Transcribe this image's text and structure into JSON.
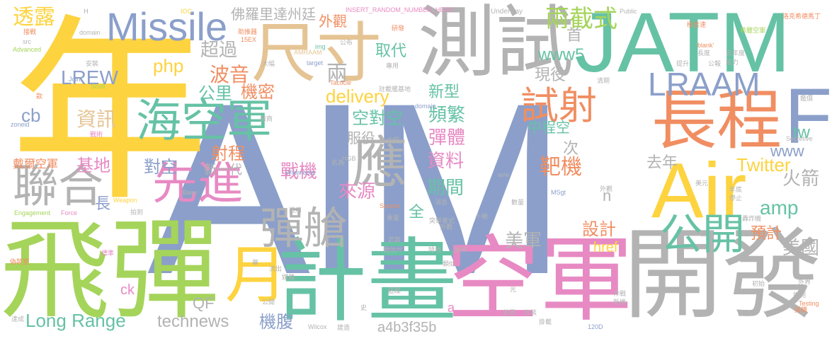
{
  "palette": {
    "yellow": "#fdd33f",
    "green": "#a5d45a",
    "blue": "#8b9fca",
    "pink": "#e78ac3",
    "orange": "#f08e62",
    "teal": "#66c2a5",
    "gray": "#b3b3b3",
    "tan": "#e5c494"
  },
  "words": [
    {
      "text": "AIM",
      "color": "#8b9fca"
    },
    {
      "text": "年",
      "color": "#fdd33f"
    },
    {
      "text": "飛彈",
      "color": "#a5d45a"
    },
    {
      "text": "測試",
      "color": "#b3b3b3"
    },
    {
      "text": "JATM",
      "color": "#66c2a5"
    },
    {
      "text": "尺寸",
      "color": "#e5c494"
    },
    {
      "text": "Missile",
      "color": "#8b9fca"
    },
    {
      "text": "Air",
      "color": "#fdd33f"
    },
    {
      "text": "F",
      "color": "#8b9fca"
    },
    {
      "text": "長程",
      "color": "#f08e62"
    },
    {
      "text": "空軍",
      "color": "#e78ac3"
    },
    {
      "text": "開發",
      "color": "#b3b3b3"
    },
    {
      "text": "計畫",
      "color": "#66c2a5"
    },
    {
      "text": "月",
      "color": "#fdd33f"
    },
    {
      "text": "海空軍",
      "color": "#66c2a5"
    },
    {
      "text": "先進",
      "color": "#e78ac3"
    },
    {
      "text": "聯合",
      "color": "#b3b3b3"
    },
    {
      "text": "應",
      "color": "#b3b3b3"
    },
    {
      "text": "彈艙",
      "color": "#b3b3b3"
    },
    {
      "text": "試射",
      "color": "#f08e62"
    },
    {
      "text": "LRAAM",
      "color": "#8b9fca"
    },
    {
      "text": "公開",
      "color": "#66c2a5"
    },
    {
      "text": "兩截式",
      "color": "#a5d45a"
    },
    {
      "text": "透露",
      "color": "#fdd33f"
    },
    {
      "text": "佛羅里達州廷",
      "color": "#b3b3b3"
    },
    {
      "text": "外觀",
      "color": "#f08e62"
    },
    {
      "text": "超過",
      "color": "#b3b3b3"
    },
    {
      "text": "php",
      "color": "#fdd33f"
    },
    {
      "text": "波音",
      "color": "#f08e62"
    },
    {
      "text": "LREW",
      "color": "#8b9fca"
    },
    {
      "text": "公里",
      "color": "#66c2a5"
    },
    {
      "text": "機密",
      "color": "#f08e62"
    },
    {
      "text": "兩",
      "color": "#b3b3b3"
    },
    {
      "text": "delivery",
      "color": "#fdd33f"
    },
    {
      "text": "取代",
      "color": "#66c2a5"
    },
    {
      "text": "www5",
      "color": "#66c2a5"
    },
    {
      "text": "首",
      "color": "#b3b3b3"
    },
    {
      "text": "現役",
      "color": "#b3b3b3"
    },
    {
      "text": "cb",
      "color": "#8b9fca"
    },
    {
      "text": "資訊",
      "color": "#e5c494"
    },
    {
      "text": "空對空",
      "color": "#66c2a5"
    },
    {
      "text": "新型",
      "color": "#66c2a5"
    },
    {
      "text": "頻繁",
      "color": "#66c2a5"
    },
    {
      "text": "服役",
      "color": "#b3b3b3"
    },
    {
      "text": "中程空",
      "color": "#66c2a5"
    },
    {
      "text": "tw",
      "color": "#66c2a5"
    },
    {
      "text": "www",
      "color": "#8b9fca"
    },
    {
      "text": "戴爾空軍",
      "color": "#f08e62"
    },
    {
      "text": "射程",
      "color": "#f08e62"
    },
    {
      "text": "彈體",
      "color": "#e78ac3"
    },
    {
      "text": "次",
      "color": "#b3b3b3"
    },
    {
      "text": "基地",
      "color": "#e78ac3"
    },
    {
      "text": "對空",
      "color": "#8b9fca"
    },
    {
      "text": "資料",
      "color": "#e78ac3"
    },
    {
      "text": "靶機",
      "color": "#f08e62"
    },
    {
      "text": "去年",
      "color": "#b3b3b3"
    },
    {
      "text": "Twitter",
      "color": "#fdd33f"
    },
    {
      "text": "新一代",
      "color": "#b3b3b3"
    },
    {
      "text": "戰機",
      "color": "#e78ac3"
    },
    {
      "text": "期間",
      "color": "#66c2a5"
    },
    {
      "text": "火箭",
      "color": "#b3b3b3"
    },
    {
      "text": "長",
      "color": "#8b9fca"
    },
    {
      "text": "來源",
      "color": "#e78ac3"
    },
    {
      "text": "n",
      "color": "#b3b3b3"
    },
    {
      "text": "amp",
      "color": "#66c2a5"
    },
    {
      "text": "全",
      "color": "#66c2a5"
    },
    {
      "text": "設計",
      "color": "#f08e62"
    },
    {
      "text": "預計",
      "color": "#f08e62"
    },
    {
      "text": "美軍",
      "color": "#b3b3b3"
    },
    {
      "text": "href",
      "color": "#fdd33f"
    },
    {
      "text": "美國",
      "color": "#b3b3b3"
    },
    {
      "text": "Long Range",
      "color": "#66c2a5"
    },
    {
      "text": "technews",
      "color": "#b3b3b3"
    },
    {
      "text": "QF",
      "color": "#b3b3b3"
    },
    {
      "text": "ck",
      "color": "#e78ac3"
    },
    {
      "text": "機腹",
      "color": "#8b9fca"
    },
    {
      "text": "a4b3f35b",
      "color": "#b3b3b3"
    },
    {
      "text": "a",
      "color": "#e78ac3"
    },
    {
      "text": "INSERT_RANDOM_NUMBER_HERE'",
      "color": "#e78ac3"
    },
    {
      "text": "Underway",
      "color": "#b3b3b3"
    },
    {
      "text": "Public",
      "color": "#b3b3b3"
    },
    {
      "text": "Wikimedia",
      "color": "#8b9fca"
    },
    {
      "text": "AMRAAM",
      "color": "#e5c494"
    },
    {
      "text": "Tacticle",
      "color": "#f08e62"
    },
    {
      "text": "Commons",
      "color": "#8b9fca"
    },
    {
      "text": "domain",
      "color": "#b3b3b3"
    },
    {
      "text": "Advanced",
      "color": "#a5d45a"
    },
    {
      "text": "Joint",
      "color": "#8b9fca"
    },
    {
      "text": "Scott",
      "color": "#a5d45a"
    },
    {
      "text": "zoneid",
      "color": "#8b9fca"
    },
    {
      "text": "Engagement",
      "color": "#a5d45a"
    },
    {
      "text": "Force",
      "color": "#e78ac3"
    },
    {
      "text": "Weapon",
      "color": "#fdd33f"
    },
    {
      "text": "Base",
      "color": "#b3b3b3"
    },
    {
      "text": "HGB",
      "color": "#b3b3b3"
    },
    {
      "text": "Source",
      "color": "#f08e62"
    },
    {
      "text": "avw",
      "color": "#b3b3b3"
    },
    {
      "text": "MSgt",
      "color": "#8b9fca"
    },
    {
      "text": "Secretive",
      "color": "#b3b3b3"
    },
    {
      "text": "Testing",
      "color": "#f08e62"
    },
    {
      "text": "Wilcox",
      "color": "#b3b3b3"
    },
    {
      "text": "120D",
      "color": "#8b9fca"
    },
    {
      "text": "15EX",
      "color": "#f08e62"
    },
    {
      "text": "img",
      "color": "#66c2a5"
    },
    {
      "text": "target",
      "color": "#8b9fca"
    },
    {
      "text": "src",
      "color": "#b3b3b3"
    },
    {
      "text": "blank'",
      "color": "#f08e62"
    },
    {
      "text": "IOC",
      "color": "#fdd33f"
    },
    {
      "text": "C",
      "color": "#f08e62"
    },
    {
      "text": "B",
      "color": "#b3b3b3"
    },
    {
      "text": "J",
      "color": "#e78ac3"
    },
    {
      "text": "I",
      "color": "#e78ac3"
    },
    {
      "text": "H",
      "color": "#b3b3b3"
    },
    {
      "text": "接戰",
      "color": "#b3b3b3"
    },
    {
      "text": "助推器",
      "color": "#f08e62"
    },
    {
      "text": "公布",
      "color": "#f08e62"
    },
    {
      "text": "研發",
      "color": "#b3b3b3"
    },
    {
      "text": "極音速",
      "color": "#f08e62"
    },
    {
      "text": "洛克希德馬丁",
      "color": "#f08e62"
    },
    {
      "text": "希臘空軍",
      "color": "#f08e62"
    },
    {
      "text": "去年度",
      "color": "#a5d45a"
    },
    {
      "text": "能力",
      "color": "#b3b3b3"
    },
    {
      "text": "長度",
      "color": "#b3b3b3"
    },
    {
      "text": "提升",
      "color": "#b3b3b3"
    },
    {
      "text": "公報",
      "color": "#b3b3b3"
    },
    {
      "text": "大幅",
      "color": "#b3b3b3"
    },
    {
      "text": "專用",
      "color": "#b3b3b3"
    },
    {
      "text": "安裝",
      "color": "#b3b3b3"
    },
    {
      "text": "款",
      "color": "#b3b3b3"
    },
    {
      "text": "戰術",
      "color": "#f08e62"
    },
    {
      "text": "畫面",
      "color": "#e78ac3"
    },
    {
      "text": "廠商",
      "color": "#b3b3b3"
    },
    {
      "text": "中程",
      "color": "#b3b3b3"
    },
    {
      "text": "名為",
      "color": "#b3b3b3"
    },
    {
      "text": "鑑價",
      "color": "#b3b3b3"
    },
    {
      "text": "清期",
      "color": "#b3b3b3"
    },
    {
      "text": "註載艦基地",
      "color": "#b3b3b3"
    },
    {
      "text": "偽裝室",
      "color": "#b3b3b3"
    },
    {
      "text": "標準",
      "color": "#f08e62"
    },
    {
      "text": "猶他州",
      "color": "#e78ac3"
    },
    {
      "text": "武裝",
      "color": "#b3b3b3"
    },
    {
      "text": "重量",
      "color": "#b3b3b3"
    },
    {
      "text": "遭受",
      "color": "#b3b3b3"
    },
    {
      "text": "外觀",
      "color": "#b3b3b3"
    },
    {
      "text": "十幾",
      "color": "#b3b3b3"
    },
    {
      "text": "美元",
      "color": "#b3b3b3"
    },
    {
      "text": "年底",
      "color": "#b3b3b3"
    },
    {
      "text": "停止",
      "color": "#b3b3b3"
    },
    {
      "text": "轟炸機",
      "color": "#b3b3b3"
    },
    {
      "text": "類似",
      "color": "#b3b3b3"
    },
    {
      "text": "數量",
      "color": "#b3b3b3"
    },
    {
      "text": "流出",
      "color": "#b3b3b3"
    },
    {
      "text": "媒體",
      "color": "#b3b3b3"
    },
    {
      "text": "外界",
      "color": "#b3b3b3"
    },
    {
      "text": "推測",
      "color": "#b3b3b3"
    },
    {
      "text": "採購",
      "color": "#b3b3b3"
    },
    {
      "text": "公尺",
      "color": "#f08e62"
    },
    {
      "text": "公開",
      "color": "#b3b3b3"
    },
    {
      "text": "達成",
      "color": "#b3b3b3"
    },
    {
      "text": "建造",
      "color": "#b3b3b3"
    },
    {
      "text": "改裝",
      "color": "#b3b3b3"
    },
    {
      "text": "差異",
      "color": "#b3b3b3"
    },
    {
      "text": "掛載",
      "color": "#b3b3b3"
    },
    {
      "text": "新機",
      "color": "#b3b3b3"
    },
    {
      "text": "作戰",
      "color": "#b3b3b3"
    },
    {
      "text": "初始",
      "color": "#b3b3b3"
    },
    {
      "text": "進度",
      "color": "#b3b3b3"
    },
    {
      "text": "外觀",
      "color": "#b3b3b3"
    },
    {
      "text": "拍到",
      "color": "#b3b3b3"
    },
    {
      "text": "適用",
      "color": "#b3b3b3"
    },
    {
      "text": "消息",
      "color": "#b3b3b3"
    },
    {
      "text": "突擊者式",
      "color": "#b3b3b3"
    },
    {
      "text": "特地",
      "color": "#b3b3b3"
    },
    {
      "text": "雷神",
      "color": "#b3b3b3"
    },
    {
      "text": "光",
      "color": "#b3b3b3"
    },
    {
      "text": "匿蹤",
      "color": "#b3b3b3"
    },
    {
      "text": "花",
      "color": "#b3b3b3"
    },
    {
      "text": "示",
      "color": "#b3b3b3"
    },
    {
      "text": "重",
      "color": "#b3b3b3"
    },
    {
      "text": "時",
      "color": "#b3b3b3"
    },
    {
      "text": "甚",
      "color": "#b3b3b3"
    },
    {
      "text": "幕",
      "color": "#b3b3b3"
    },
    {
      "text": "史",
      "color": "#b3b3b3"
    },
    {
      "text": "太",
      "color": "#b3b3b3"
    },
    {
      "text": "Hill",
      "color": "#b3b3b3"
    },
    {
      "text": "外籍",
      "color": "#b3b3b3"
    },
    {
      "text": "發展",
      "color": "#b3b3b3"
    },
    {
      "text": "拉發",
      "color": "#b3b3b3"
    },
    {
      "text": "體積",
      "color": "#b3b3b3"
    }
  ]
}
